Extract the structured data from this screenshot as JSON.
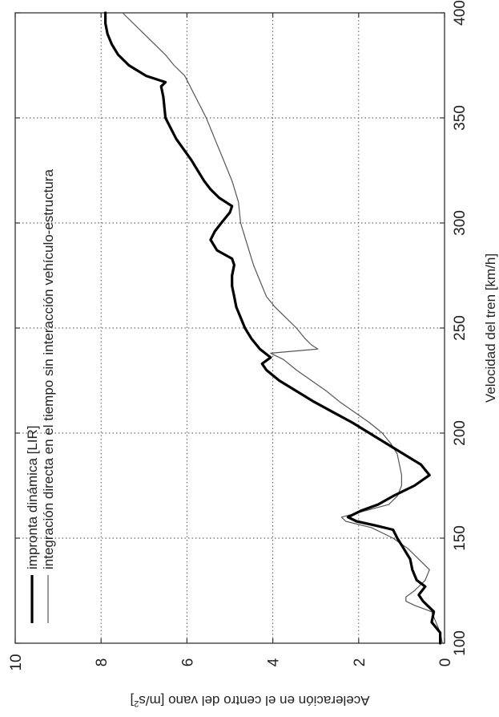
{
  "chart_data": {
    "type": "line",
    "orientation": "rotated-90-ccw",
    "xlabel": "Velocidad del tren [km/h]",
    "ylabel_main": "Aceleración en el centro del vano [m/s",
    "ylabel_sup": "2",
    "ylabel_close": "]",
    "xlim": [
      100,
      400
    ],
    "ylim": [
      0,
      10
    ],
    "x_ticks": [
      100,
      150,
      200,
      250,
      300,
      350,
      400
    ],
    "y_ticks": [
      0,
      2,
      4,
      6,
      8,
      10
    ],
    "grid": true,
    "legend_placement": "top-left",
    "series": [
      {
        "name": "impronta dinámica [LIR]",
        "color": "#000000",
        "style": "thick",
        "x": [
          100,
          105,
          110,
          115,
          120,
          123,
          127,
          130,
          135,
          140,
          145,
          150,
          152,
          154,
          156,
          158,
          160,
          163,
          166,
          170,
          175,
          180,
          185,
          190,
          195,
          200,
          205,
          210,
          215,
          220,
          225,
          230,
          233,
          236,
          240,
          245,
          250,
          255,
          260,
          265,
          270,
          275,
          280,
          283,
          287,
          292,
          296,
          300,
          305,
          308,
          312,
          316,
          320,
          330,
          340,
          350,
          360,
          365,
          367,
          370,
          375,
          380,
          385,
          390,
          395,
          400
        ],
        "y": [
          0.1,
          0.1,
          0.3,
          0.25,
          0.5,
          0.6,
          0.45,
          0.65,
          0.75,
          0.8,
          0.95,
          1.1,
          1.15,
          1.2,
          1.6,
          2.05,
          2.25,
          1.95,
          1.55,
          1.2,
          0.7,
          0.35,
          0.55,
          0.95,
          1.35,
          1.75,
          2.15,
          2.6,
          3.05,
          3.45,
          3.85,
          4.15,
          4.25,
          4.05,
          4.3,
          4.5,
          4.65,
          4.75,
          4.85,
          4.9,
          4.95,
          4.95,
          4.9,
          4.95,
          5.3,
          5.45,
          5.35,
          5.2,
          5.0,
          4.95,
          5.25,
          5.45,
          5.6,
          5.9,
          6.25,
          6.5,
          6.55,
          6.6,
          6.5,
          6.95,
          7.35,
          7.6,
          7.75,
          7.85,
          7.9,
          7.9
        ]
      },
      {
        "name": "integración directa en el tiempo sin interacción vehículo-estructura",
        "color": "#555555",
        "style": "thin",
        "x": [
          100,
          105,
          110,
          115,
          118,
          120,
          122,
          125,
          130,
          135,
          140,
          145,
          150,
          155,
          158,
          160,
          163,
          166,
          170,
          175,
          180,
          185,
          190,
          195,
          200,
          205,
          210,
          215,
          220,
          225,
          230,
          235,
          238,
          240,
          242,
          245,
          250,
          255,
          260,
          265,
          270,
          275,
          280,
          290,
          300,
          310,
          320,
          330,
          340,
          350,
          360,
          370,
          375,
          380,
          390,
          400
        ],
        "y": [
          0.05,
          0.1,
          0.2,
          0.3,
          0.7,
          0.9,
          0.9,
          0.7,
          0.45,
          0.35,
          0.6,
          0.85,
          1.2,
          1.7,
          2.3,
          2.4,
          1.85,
          1.3,
          1.1,
          1.0,
          1.0,
          1.05,
          1.1,
          1.25,
          1.45,
          1.75,
          2.1,
          2.45,
          2.75,
          3.1,
          3.45,
          3.75,
          4.05,
          2.95,
          3.1,
          3.25,
          3.45,
          3.7,
          3.95,
          4.15,
          4.25,
          4.35,
          4.45,
          4.6,
          4.75,
          4.8,
          4.95,
          5.15,
          5.35,
          5.55,
          5.8,
          6.05,
          6.3,
          6.5,
          7.0,
          7.5
        ]
      }
    ]
  }
}
